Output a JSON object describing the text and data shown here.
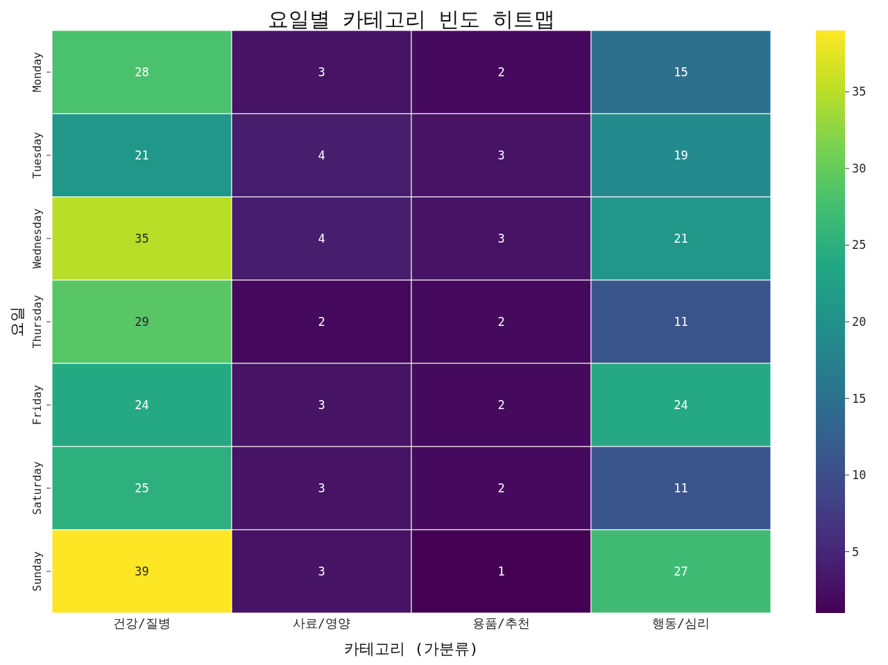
{
  "chart_data": {
    "type": "heatmap",
    "title": "요일별 카테고리 빈도 히트맵",
    "xlabel": "카테고리 (가분류)",
    "ylabel": "요일",
    "categories": [
      "건강/질병",
      "사료/영양",
      "용품/추천",
      "행동/심리"
    ],
    "y_categories": [
      "Monday",
      "Tuesday",
      "Wednesday",
      "Thursday",
      "Friday",
      "Saturday",
      "Sunday"
    ],
    "cells": [
      [
        28,
        3,
        2,
        15
      ],
      [
        21,
        4,
        3,
        19
      ],
      [
        35,
        4,
        3,
        21
      ],
      [
        29,
        2,
        2,
        11
      ],
      [
        24,
        3,
        2,
        24
      ],
      [
        25,
        3,
        2,
        11
      ],
      [
        39,
        3,
        1,
        27
      ]
    ],
    "data_labels": true,
    "clim": [
      1,
      39
    ],
    "cticks": [
      5,
      10,
      15,
      20,
      25,
      30,
      35
    ]
  }
}
